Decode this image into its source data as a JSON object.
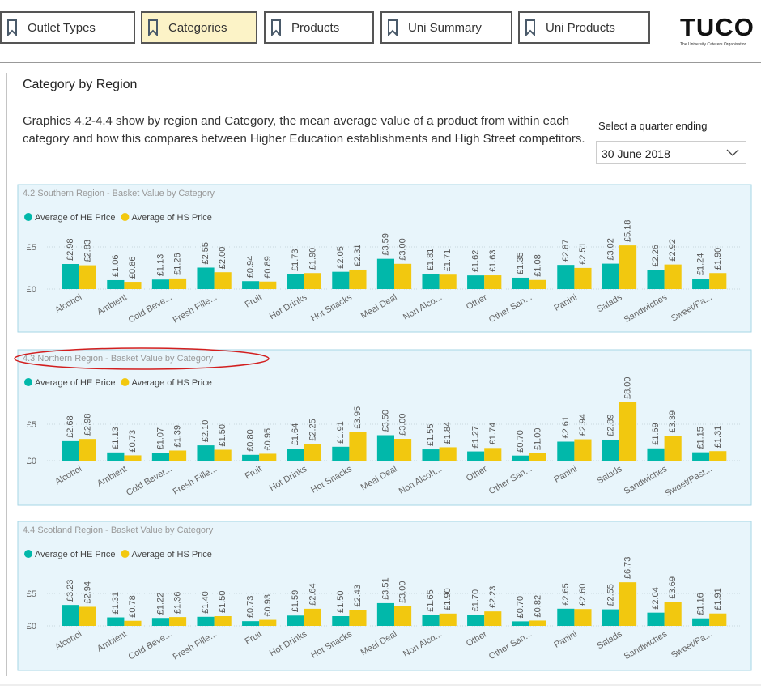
{
  "tabs": [
    "Outlet Types",
    "Categories",
    "Products",
    "Uni Summary",
    "Uni Products"
  ],
  "active_tab": 1,
  "logo": {
    "title": "TUCO",
    "subtitle": "The University Caterers Organisation"
  },
  "page_title": "Category by Region",
  "description": "Graphics 4.2-4.4 show by region and Category, the mean average value of a product from within each category and how this compares between Higher Education establishments and High Street competitors.",
  "filter": {
    "label": "Select a quarter ending",
    "value": "30 June 2018"
  },
  "chart_data": [
    {
      "type": "bar",
      "title": "4.2 Southern Region - Basket Value by Category",
      "legend": "top-left",
      "categories": [
        "Alcohol",
        "Ambient",
        "Cold Beve...",
        "Fresh Fille...",
        "Fruit",
        "Hot Drinks",
        "Hot Snacks",
        "Meal Deal",
        "Non Alco...",
        "Other",
        "Other San...",
        "Panini",
        "Salads",
        "Sandwiches",
        "Sweet/Pa..."
      ],
      "series": [
        {
          "name": "Average of HE Price",
          "color": "#01b8aa",
          "values": [
            2.98,
            1.06,
            1.13,
            2.55,
            0.94,
            1.73,
            2.05,
            3.59,
            1.81,
            1.62,
            1.35,
            2.87,
            3.02,
            2.26,
            1.24
          ],
          "value_labels": [
            "£2.98",
            "£1.06",
            "£1.13",
            "£2.55",
            "£0.94",
            "£1.73",
            "£2.05",
            "£3.59",
            "£1.81",
            "£1.62",
            "£1.35",
            "£2.87",
            "£3.02",
            "£2.26",
            "£1.24"
          ]
        },
        {
          "name": "Average of HS Price",
          "color": "#f2c80f",
          "values": [
            2.83,
            0.86,
            1.26,
            2.0,
            0.89,
            1.9,
            2.31,
            3.0,
            1.71,
            1.63,
            1.08,
            2.51,
            5.18,
            2.92,
            1.9
          ],
          "value_labels": [
            "£2.83",
            "£0.86",
            "£1.26",
            "£2.00",
            "£0.89",
            "£1.90",
            "£2.31",
            "£3.00",
            "£1.71",
            "£1.63",
            "£1.08",
            "£2.51",
            "£5.18",
            "£2.92",
            "£1.90"
          ]
        }
      ],
      "ylim": [
        0,
        6.5
      ],
      "yticks": [
        {
          "value": 0,
          "label": "£0"
        },
        {
          "value": 5,
          "label": "£5"
        }
      ],
      "grid": true
    },
    {
      "type": "bar",
      "title": "4.3 Northern Region - Basket Value by Category",
      "legend": "top-left",
      "categories": [
        "Alcohol",
        "Ambient",
        "Cold Bever...",
        "Fresh Fille...",
        "Fruit",
        "Hot Drinks",
        "Hot Snacks",
        "Meal Deal",
        "Non Alcoh...",
        "Other",
        "Other San...",
        "Panini",
        "Salads",
        "Sandwiches",
        "Sweet/Past..."
      ],
      "series": [
        {
          "name": "Average of HE Price",
          "color": "#01b8aa",
          "values": [
            2.68,
            1.13,
            1.07,
            2.1,
            0.8,
            1.64,
            1.91,
            3.5,
            1.55,
            1.27,
            0.7,
            2.61,
            2.89,
            1.69,
            1.15
          ],
          "value_labels": [
            "£2.68",
            "£1.13",
            "£1.07",
            "£2.10",
            "£0.80",
            "£1.64",
            "£1.91",
            "£3.50",
            "£1.55",
            "£1.27",
            "£0.70",
            "£2.61",
            "£2.89",
            "£1.69",
            "£1.15"
          ]
        },
        {
          "name": "Average of HS Price",
          "color": "#f2c80f",
          "values": [
            2.98,
            0.73,
            1.39,
            1.5,
            0.95,
            2.25,
            3.95,
            3.0,
            1.84,
            1.74,
            1.0,
            2.94,
            8.0,
            3.39,
            1.31
          ],
          "value_labels": [
            "£2.98",
            "£0.73",
            "£1.39",
            "£1.50",
            "£0.95",
            "£2.25",
            "£3.95",
            "£3.00",
            "£1.84",
            "£1.74",
            "£1.00",
            "£2.94",
            "£8.00",
            "£3.39",
            "£1.31"
          ]
        }
      ],
      "ylim": [
        0,
        8
      ],
      "yticks": [
        {
          "value": 0,
          "label": "£0"
        },
        {
          "value": 5,
          "label": "£5"
        }
      ],
      "grid": true
    },
    {
      "type": "bar",
      "title": "4.4 Scotland Region - Basket Value by Category",
      "legend": "top-left",
      "categories": [
        "Alcohol",
        "Ambient",
        "Cold Beve...",
        "Fresh Fille...",
        "Fruit",
        "Hot Drinks",
        "Hot Snacks",
        "Meal Deal",
        "Non Alco...",
        "Other",
        "Other San...",
        "Panini",
        "Salads",
        "Sandwiches",
        "Sweet/Pa..."
      ],
      "series": [
        {
          "name": "Average of HE Price",
          "color": "#01b8aa",
          "values": [
            3.23,
            1.31,
            1.22,
            1.4,
            0.73,
            1.59,
            1.5,
            3.51,
            1.65,
            1.7,
            0.7,
            2.65,
            2.55,
            2.04,
            1.16
          ],
          "value_labels": [
            "£3.23",
            "£1.31",
            "£1.22",
            "£1.40",
            "£0.73",
            "£1.59",
            "£1.50",
            "£3.51",
            "£1.65",
            "£1.70",
            "£0.70",
            "£2.65",
            "£2.55",
            "£2.04",
            "£1.16"
          ]
        },
        {
          "name": "Average of HS Price",
          "color": "#f2c80f",
          "values": [
            2.94,
            0.78,
            1.36,
            1.5,
            0.93,
            2.64,
            2.43,
            3.0,
            1.9,
            2.23,
            0.82,
            2.6,
            6.73,
            3.69,
            1.91
          ],
          "value_labels": [
            "£2.94",
            "£0.78",
            "£1.36",
            "£1.50",
            "£0.93",
            "£2.64",
            "£2.43",
            "£3.00",
            "£1.90",
            "£2.23",
            "£0.82",
            "£2.60",
            "£6.73",
            "£3.69",
            "£1.91"
          ]
        }
      ],
      "ylim": [
        0,
        7
      ],
      "yticks": [
        {
          "value": 0,
          "label": "£0"
        },
        {
          "value": 5,
          "label": "£5"
        }
      ],
      "grid": true
    }
  ]
}
